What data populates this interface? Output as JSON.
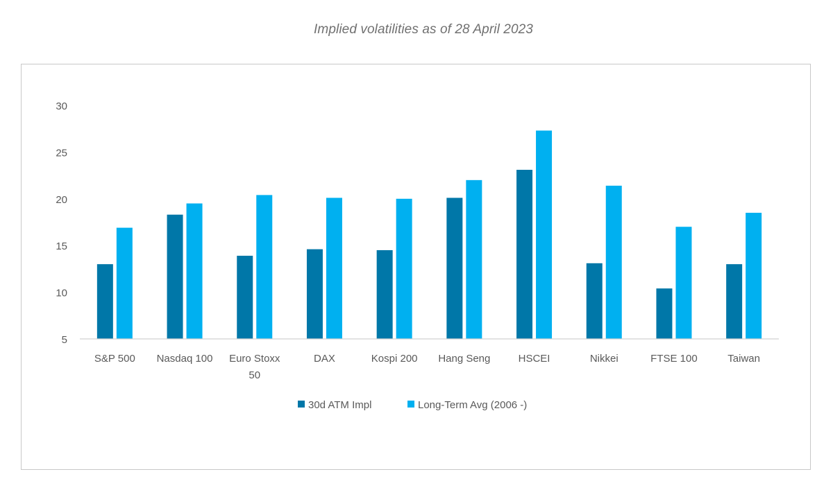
{
  "title": "Implied volatilities as of 28 April 2023",
  "colors": {
    "series_1": "#0077a8",
    "series_2": "#00b0f0",
    "axis": "#d0d0d0",
    "text": "#595959",
    "title": "#707070"
  },
  "chart_data": {
    "type": "bar",
    "title": "Implied volatilities as of 28 April 2023",
    "xlabel": "",
    "ylabel": "",
    "ylim": [
      5,
      30
    ],
    "yticks": [
      5,
      10,
      15,
      20,
      25,
      30
    ],
    "grid": false,
    "legend_position": "bottom",
    "categories": [
      [
        "S&P 500"
      ],
      [
        "Nasdaq 100"
      ],
      [
        "Euro Stoxx",
        "50"
      ],
      [
        "DAX"
      ],
      [
        "Kospi 200"
      ],
      [
        "Hang Seng"
      ],
      [
        "HSCEI"
      ],
      [
        "Nikkei"
      ],
      [
        "FTSE 100"
      ],
      [
        "Taiwan"
      ]
    ],
    "series": [
      {
        "name": "30d ATM Impl",
        "color": "#0077a8",
        "values": [
          13.0,
          18.3,
          13.9,
          14.6,
          14.5,
          20.1,
          23.1,
          13.1,
          10.4,
          13.0
        ]
      },
      {
        "name": "Long-Term Avg (2006 -)",
        "color": "#00b0f0",
        "values": [
          16.9,
          19.5,
          20.4,
          20.1,
          20.0,
          22.0,
          27.3,
          21.4,
          17.0,
          18.5
        ]
      }
    ]
  }
}
